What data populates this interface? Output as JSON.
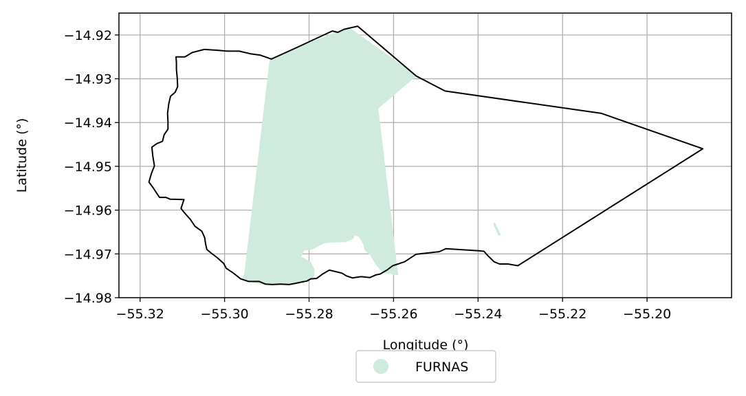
{
  "chart_data": {
    "type": "map",
    "xlabel": "Longitude (°)",
    "ylabel": "Latitude (°)",
    "xlim": [
      -55.325,
      -55.18
    ],
    "ylim": [
      -14.98,
      -14.915
    ],
    "x_ticks": [
      -55.32,
      -55.3,
      -55.28,
      -55.26,
      -55.24,
      -55.22,
      -55.2
    ],
    "x_tick_labels": [
      "−55.32",
      "−55.30",
      "−55.28",
      "−55.26",
      "−55.24",
      "−55.22",
      "−55.20"
    ],
    "y_ticks": [
      -14.92,
      -14.93,
      -14.94,
      -14.95,
      -14.96,
      -14.97,
      -14.98
    ],
    "y_tick_labels": [
      "−14.92",
      "−14.93",
      "−14.94",
      "−14.95",
      "−14.96",
      "−14.97",
      "−14.98"
    ],
    "grid": true,
    "legend_position": "bottom-center",
    "legend": [
      {
        "label": "FURNAS",
        "color": "#cfebdd"
      }
    ],
    "boundary_color": "#000000",
    "fill_color": "#cfebdd",
    "boundary": [
      [
        -55.2685,
        -14.918
      ],
      [
        -55.2546,
        -14.9294
      ],
      [
        -55.2478,
        -14.9328
      ],
      [
        -55.2108,
        -14.9379
      ],
      [
        -55.1868,
        -14.946
      ],
      [
        -55.2306,
        -14.9727
      ],
      [
        -55.2329,
        -14.9723
      ],
      [
        -55.2349,
        -14.9723
      ],
      [
        -55.2362,
        -14.9718
      ],
      [
        -55.2378,
        -14.9703
      ],
      [
        -55.2386,
        -14.9694
      ],
      [
        -55.2398,
        -14.9693
      ],
      [
        -55.2476,
        -14.9688
      ],
      [
        -55.2492,
        -14.9695
      ],
      [
        -55.2547,
        -14.9701
      ],
      [
        -55.2574,
        -14.9718
      ],
      [
        -55.2602,
        -14.9727
      ],
      [
        -55.2616,
        -14.9737
      ],
      [
        -55.2632,
        -14.9746
      ],
      [
        -55.2642,
        -14.9748
      ],
      [
        -55.2656,
        -14.9754
      ],
      [
        -55.2677,
        -14.9752
      ],
      [
        -55.2697,
        -14.9755
      ],
      [
        -55.2712,
        -14.975
      ],
      [
        -55.2722,
        -14.9744
      ],
      [
        -55.2752,
        -14.9737
      ],
      [
        -55.2768,
        -14.9746
      ],
      [
        -55.2782,
        -14.9756
      ],
      [
        -55.2796,
        -14.9757
      ],
      [
        -55.2805,
        -14.9762
      ],
      [
        -55.2817,
        -14.9764
      ],
      [
        -55.2831,
        -14.9767
      ],
      [
        -55.2847,
        -14.977
      ],
      [
        -55.2867,
        -14.9769
      ],
      [
        -55.2887,
        -14.977
      ],
      [
        -55.2903,
        -14.9769
      ],
      [
        -55.2918,
        -14.9763
      ],
      [
        -55.2943,
        -14.9763
      ],
      [
        -55.2962,
        -14.9757
      ],
      [
        -55.2979,
        -14.9744
      ],
      [
        -55.2996,
        -14.9733
      ],
      [
        -55.3002,
        -14.9722
      ],
      [
        -55.3017,
        -14.9709
      ],
      [
        -55.3032,
        -14.9698
      ],
      [
        -55.3042,
        -14.969
      ],
      [
        -55.3045,
        -14.9677
      ],
      [
        -55.3047,
        -14.9663
      ],
      [
        -55.3054,
        -14.9648
      ],
      [
        -55.307,
        -14.9637
      ],
      [
        -55.3081,
        -14.9621
      ],
      [
        -55.3096,
        -14.9605
      ],
      [
        -55.3103,
        -14.9596
      ],
      [
        -55.3096,
        -14.9576
      ],
      [
        -55.3129,
        -14.9575
      ],
      [
        -55.3139,
        -14.9571
      ],
      [
        -55.3154,
        -14.9571
      ],
      [
        -55.3161,
        -14.9561
      ],
      [
        -55.3169,
        -14.9549
      ],
      [
        -55.3179,
        -14.9536
      ],
      [
        -55.3173,
        -14.9516
      ],
      [
        -55.3166,
        -14.9499
      ],
      [
        -55.317,
        -14.9476
      ],
      [
        -55.3172,
        -14.9456
      ],
      [
        -55.316,
        -14.9448
      ],
      [
        -55.3147,
        -14.9443
      ],
      [
        -55.3143,
        -14.9428
      ],
      [
        -55.3134,
        -14.9415
      ],
      [
        -55.3134,
        -14.9397
      ],
      [
        -55.3135,
        -14.9379
      ],
      [
        -55.3132,
        -14.9357
      ],
      [
        -55.3128,
        -14.934
      ],
      [
        -55.3117,
        -14.9331
      ],
      [
        -55.3111,
        -14.9318
      ],
      [
        -55.3112,
        -14.9299
      ],
      [
        -55.3114,
        -14.9279
      ],
      [
        -55.3114,
        -14.9263
      ],
      [
        -55.3115,
        -14.925
      ],
      [
        -55.3094,
        -14.925
      ],
      [
        -55.3076,
        -14.924
      ],
      [
        -55.3048,
        -14.9233
      ],
      [
        -55.3017,
        -14.9235
      ],
      [
        -55.2994,
        -14.9237
      ],
      [
        -55.2965,
        -14.9237
      ],
      [
        -55.2939,
        -14.9243
      ],
      [
        -55.2916,
        -14.9246
      ],
      [
        -55.2889,
        -14.9255
      ],
      [
        -55.2823,
        -14.9226
      ],
      [
        -55.2745,
        -14.9191
      ],
      [
        -55.2732,
        -14.9194
      ],
      [
        -55.2717,
        -14.9187
      ],
      [
        -55.2685,
        -14.918
      ]
    ],
    "fill_region": [
      [
        -55.2893,
        -14.9253
      ],
      [
        -55.2706,
        -14.9182
      ],
      [
        -55.2545,
        -14.9293
      ],
      [
        -55.2636,
        -14.9368
      ],
      [
        -55.2589,
        -14.9749
      ],
      [
        -55.2626,
        -14.9743
      ],
      [
        -55.2642,
        -14.9725
      ],
      [
        -55.2656,
        -14.9702
      ],
      [
        -55.2668,
        -14.9692
      ],
      [
        -55.2672,
        -14.9677
      ],
      [
        -55.2678,
        -14.9668
      ],
      [
        -55.2682,
        -14.9661
      ],
      [
        -55.2692,
        -14.9658
      ],
      [
        -55.2696,
        -14.9666
      ],
      [
        -55.2714,
        -14.9673
      ],
      [
        -55.2744,
        -14.9674
      ],
      [
        -55.2765,
        -14.9676
      ],
      [
        -55.2792,
        -14.969
      ],
      [
        -55.2812,
        -14.9693
      ],
      [
        -55.2818,
        -14.9707
      ],
      [
        -55.2796,
        -14.9718
      ],
      [
        -55.2787,
        -14.9736
      ],
      [
        -55.2788,
        -14.9753
      ],
      [
        -55.2808,
        -14.9762
      ],
      [
        -55.2842,
        -14.977
      ],
      [
        -55.2912,
        -14.977
      ],
      [
        -55.2959,
        -14.976
      ],
      [
        -55.2953,
        -14.9743
      ]
    ],
    "small_fill": [
      [
        -55.2361,
        -14.9629
      ],
      [
        -55.2347,
        -14.9656
      ],
      [
        -55.2351,
        -14.9658
      ],
      [
        -55.2363,
        -14.9632
      ]
    ]
  }
}
